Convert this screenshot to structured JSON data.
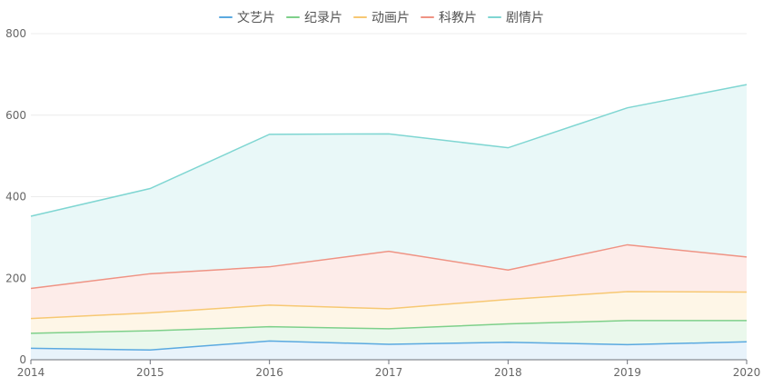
{
  "chart_data": {
    "type": "area",
    "stacked": true,
    "x": [
      "2014",
      "2015",
      "2016",
      "2017",
      "2018",
      "2019",
      "2020"
    ],
    "ylim": [
      0,
      800
    ],
    "yticks": [
      "0",
      "200",
      "400",
      "600",
      "800"
    ],
    "grid": true,
    "legend_position": "top-center",
    "series": [
      {
        "name": "文艺片",
        "color": "#5aa9e0",
        "fill": "#e8f3fb",
        "values": [
          28,
          24,
          46,
          38,
          43,
          37,
          44
        ]
      },
      {
        "name": "纪录片",
        "color": "#7ed08a",
        "fill": "#eaf8ec",
        "values": [
          37,
          47,
          35,
          38,
          45,
          59,
          52
        ]
      },
      {
        "name": "动画片",
        "color": "#f7c873",
        "fill": "#fef6e7",
        "values": [
          36,
          44,
          53,
          49,
          60,
          71,
          70
        ]
      },
      {
        "name": "科教片",
        "color": "#ef9384",
        "fill": "#fdece9",
        "values": [
          74,
          96,
          94,
          141,
          72,
          115,
          86
        ]
      },
      {
        "name": "剧情片",
        "color": "#7fd6d2",
        "fill": "#e9f8f8",
        "values": [
          177,
          209,
          325,
          288,
          300,
          336,
          423
        ]
      }
    ]
  }
}
